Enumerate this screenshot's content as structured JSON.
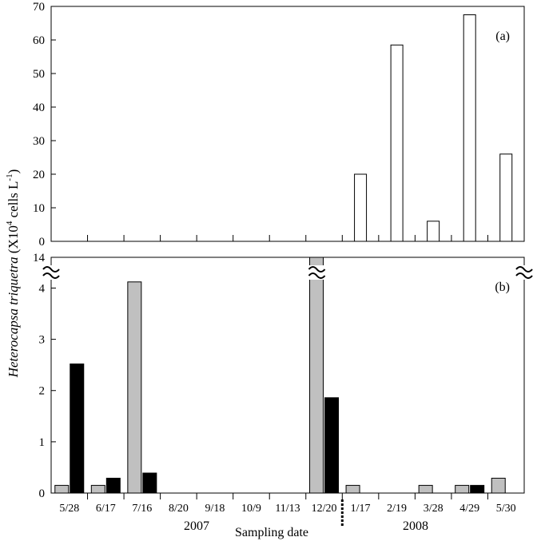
{
  "chart_data": [
    {
      "panel": "a",
      "type": "bar",
      "panel_label": "(a)",
      "categories": [
        "5/28",
        "6/17",
        "7/16",
        "8/20",
        "9/18",
        "10/9",
        "11/13",
        "12/20",
        "1/17",
        "2/19",
        "3/28",
        "4/29",
        "5/30"
      ],
      "series": [
        {
          "color": "#ffffff",
          "values": [
            0,
            0,
            0,
            0,
            0,
            0,
            0,
            0,
            20,
            58.5,
            6,
            67.5,
            26
          ]
        }
      ],
      "ylim": [
        0,
        70
      ],
      "yticks": [
        0,
        10,
        20,
        30,
        40,
        50,
        60,
        70
      ]
    },
    {
      "panel": "b",
      "type": "bar",
      "panel_label": "(b)",
      "categories": [
        "5/28",
        "6/17",
        "7/16",
        "8/20",
        "9/18",
        "10/9",
        "11/13",
        "12/20",
        "1/17",
        "2/19",
        "3/28",
        "4/29",
        "5/30"
      ],
      "series": [
        {
          "color": "#c0c0c0",
          "values": [
            0.15,
            0.15,
            4.12,
            0,
            0,
            0,
            0,
            14,
            0.15,
            0,
            0.15,
            0.15,
            0.29
          ]
        },
        {
          "color": "#000000",
          "values": [
            2.52,
            0.29,
            0.39,
            0,
            0,
            0,
            0,
            1.86,
            0,
            0,
            0,
            0.15,
            0
          ]
        }
      ],
      "ylim": [
        0,
        4.6
      ],
      "yticks": [
        0,
        1,
        2,
        3,
        4
      ],
      "axis_break": {
        "top_label": "14"
      }
    }
  ],
  "ylabel": {
    "italic": "Heterocapsa triquetra",
    "rest_prefix": " (X10",
    "sup": "4",
    "rest_mid": " cells L",
    "sup2": "-1",
    "rest_suffix": ")"
  },
  "xlabel": "Sampling date",
  "year_labels": [
    "2007",
    "2008"
  ]
}
